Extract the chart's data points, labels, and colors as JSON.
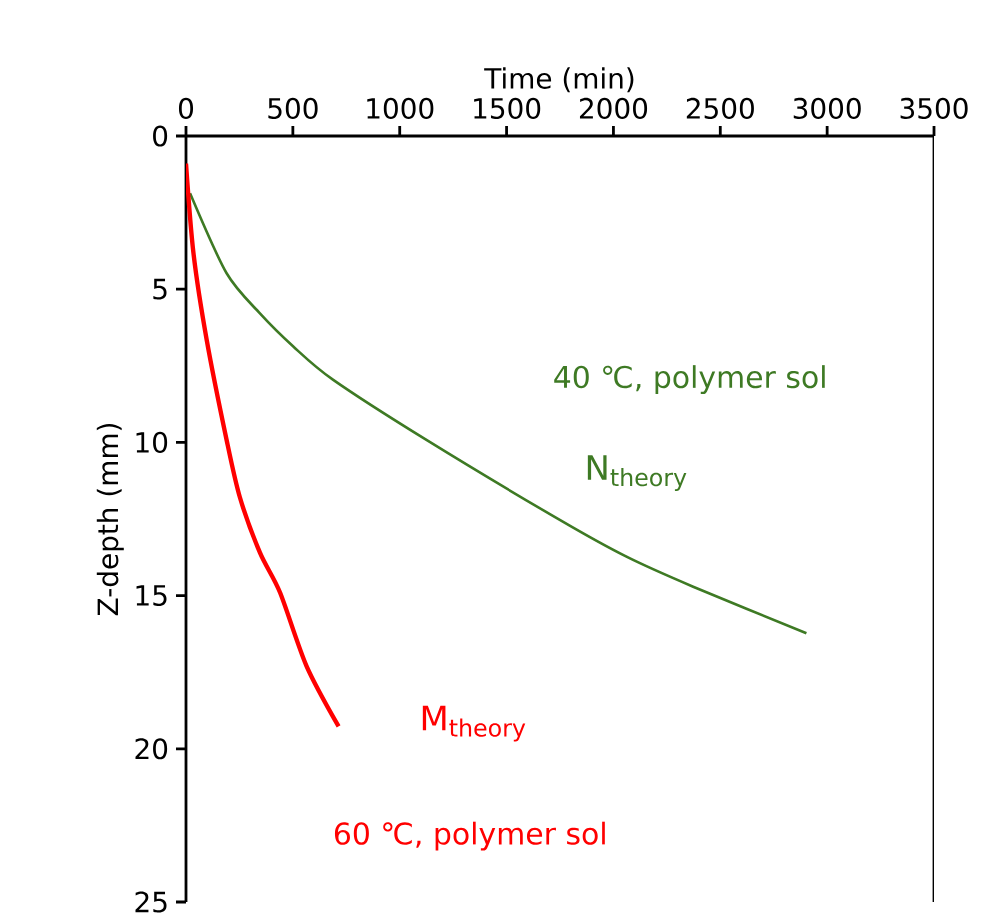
{
  "chart_data": {
    "type": "line",
    "xlabel": "Time (min)",
    "ylabel": "Z-depth (mm)",
    "xlim": [
      0,
      3500
    ],
    "xticks": [
      0,
      500,
      1000,
      1500,
      2000,
      2500,
      3000,
      3500
    ],
    "ylim": [
      25,
      0
    ],
    "yticks": [
      0,
      5,
      10,
      15,
      20,
      25
    ],
    "grid": false,
    "marker": "none",
    "line_style": "solid",
    "series": [
      {
        "name": "N$_{theory}$",
        "color": "#3e7a24",
        "x": [
          19,
          190,
          346,
          502,
          689,
          1125,
          1749,
          2061,
          2373,
          2903
        ],
        "values": [
          1.87,
          4.48,
          5.79,
          6.87,
          7.96,
          9.92,
          12.53,
          13.73,
          14.71,
          16.23
        ]
      },
      {
        "name": "M$_{theory}$",
        "color": "#ff0000",
        "x": [
          0,
          35,
          97,
          190,
          252,
          346,
          440,
          564,
          714
        ],
        "values": [
          0.9,
          3.83,
          6.66,
          9.92,
          11.79,
          13.6,
          14.9,
          17.3,
          19.27
        ]
      }
    ],
    "annotations": [
      "40 ℃, polymer sol",
      "60 ℃, polymer sol"
    ]
  }
}
